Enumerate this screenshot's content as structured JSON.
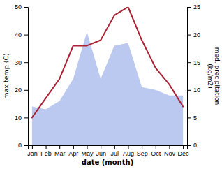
{
  "chart_data": {
    "type": "line",
    "xlabel": "date (month)",
    "ylabel": "max temp (C)",
    "y2label": "med. precipitation\n(kg/m2)",
    "categories": [
      "Jan",
      "Feb",
      "Mar",
      "Apr",
      "May",
      "Jun",
      "Jul",
      "Aug",
      "Sep",
      "Oct",
      "Nov",
      "Dec"
    ],
    "series": [
      {
        "type": "area",
        "axis": "y2",
        "color": "#bbc8ef",
        "values": [
          7,
          6.5,
          8,
          12,
          20.5,
          12,
          18,
          18.5,
          10.5,
          10,
          9,
          9
        ]
      },
      {
        "type": "line",
        "color": "#aa2233",
        "values": [
          10,
          17,
          24,
          36,
          36,
          38,
          47,
          50,
          38,
          28,
          22,
          14
        ]
      }
    ],
    "ylim": [
      0,
      50
    ],
    "yticks": [
      0,
      10,
      20,
      30,
      40,
      50
    ],
    "y2lim": [
      0,
      25
    ],
    "y2ticks": [
      0,
      5,
      10,
      15,
      20,
      25
    ],
    "grid": false
  }
}
